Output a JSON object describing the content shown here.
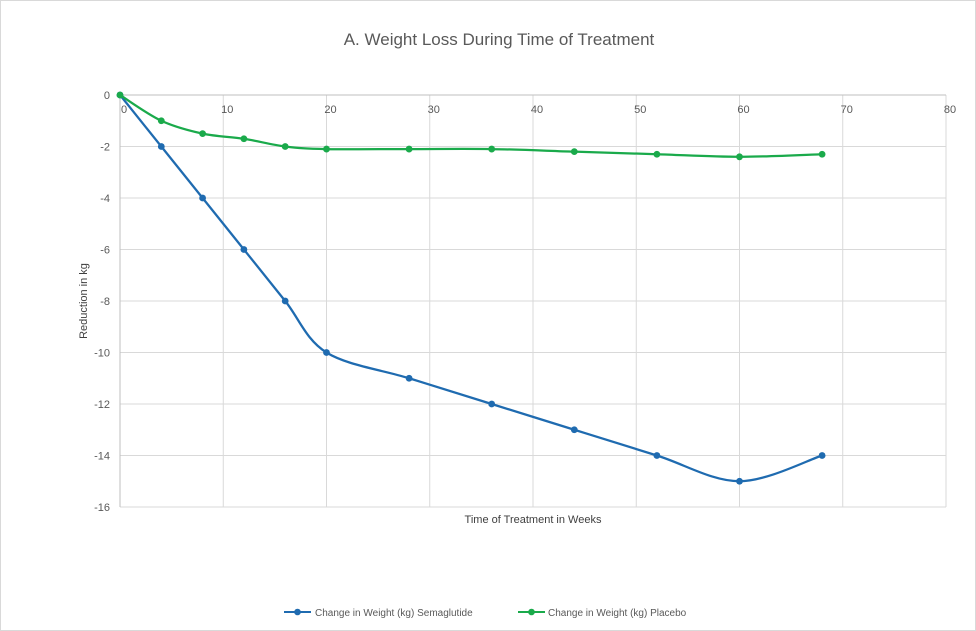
{
  "chart_data": {
    "type": "line",
    "title": "A. Weight Loss During Time of Treatment",
    "xlabel": "Time of Treatment  in Weeks",
    "ylabel": "Reduction in kg",
    "xlim": [
      0,
      80
    ],
    "ylim": [
      -16,
      0
    ],
    "x_ticks": [
      0,
      10,
      20,
      30,
      40,
      50,
      60,
      70,
      80
    ],
    "y_ticks": [
      0,
      -2,
      -4,
      -6,
      -8,
      -10,
      -12,
      -14,
      -16
    ],
    "grid": true,
    "legend_position": "bottom",
    "series": [
      {
        "name": "Change in Weight (kg) Semaglutide",
        "color": "#1f6bb0",
        "x": [
          0,
          4,
          8,
          12,
          16,
          20,
          28,
          36,
          44,
          52,
          60,
          68
        ],
        "y": [
          0,
          -2,
          -4,
          -6,
          -8,
          -10,
          -11,
          -12,
          -13,
          -14,
          -15,
          -14
        ]
      },
      {
        "name": "Change in Weight (kg) Placebo",
        "color": "#1aaa4b",
        "x": [
          0,
          4,
          8,
          12,
          16,
          20,
          28,
          36,
          44,
          52,
          60,
          68
        ],
        "y": [
          0,
          -1,
          -1.5,
          -1.7,
          -2,
          -2.1,
          -2.1,
          -2.1,
          -2.2,
          -2.3,
          -2.4,
          -2.3
        ]
      }
    ]
  }
}
